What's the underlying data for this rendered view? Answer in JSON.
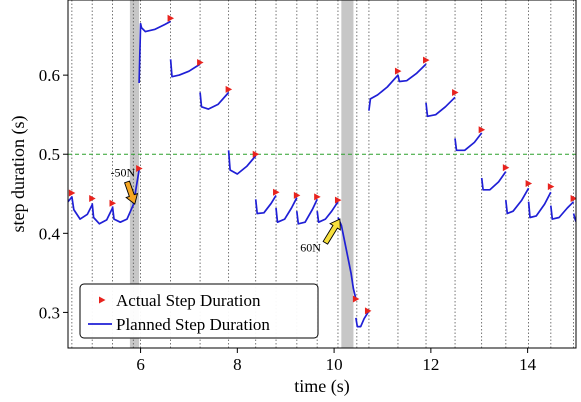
{
  "chart_data": {
    "type": "line",
    "xlabel": "time (s)",
    "ylabel": "step duration (s)",
    "xlim": [
      4.5,
      15.0
    ],
    "ylim": [
      0.255,
      0.695
    ],
    "xticks": [
      6,
      8,
      10,
      12,
      14
    ],
    "yticks": [
      0.3,
      0.4,
      0.5,
      0.6
    ],
    "xtick_labels": [
      "6",
      "8",
      "10",
      "12",
      "14"
    ],
    "ytick_labels": [
      "0.3",
      "0.4",
      "0.5",
      "0.6"
    ],
    "reference_line": {
      "y": 0.5,
      "color": "#2ca02c",
      "style": "dashed"
    },
    "push_bands": [
      {
        "x0": 5.78,
        "x1": 5.97
      },
      {
        "x0": 10.15,
        "x1": 10.4
      }
    ],
    "step_events": [
      4.58,
      5.0,
      5.42,
      5.85,
      6.0,
      6.62,
      7.23,
      7.82,
      8.38,
      8.8,
      9.23,
      9.65,
      10.08,
      10.47,
      10.72,
      11.32,
      11.9,
      12.5,
      13.05,
      13.55,
      14.02,
      14.48,
      14.95
    ],
    "annotations": [
      {
        "text": "-50N",
        "x": 5.38,
        "y": 0.472,
        "arrow_from": [
          5.72,
          0.465
        ],
        "arrow_to": [
          5.88,
          0.437
        ],
        "arrow_color": "#f5a623"
      },
      {
        "text": "60N",
        "x": 9.3,
        "y": 0.377,
        "arrow_from": [
          9.82,
          0.388
        ],
        "arrow_to": [
          10.12,
          0.418
        ],
        "arrow_color": "#f7e03c"
      }
    ],
    "legend": {
      "placement": "lower-left",
      "entries": [
        "Actual Step Duration",
        "Planned Step Duration"
      ]
    },
    "series": [
      {
        "name": "Actual Step Duration",
        "marker": "triangle-right",
        "color": "#e8231e",
        "x": [
          4.58,
          5.0,
          5.42,
          5.97,
          6.62,
          7.23,
          7.82,
          8.38,
          8.8,
          9.23,
          9.65,
          10.08,
          10.45,
          10.7,
          11.32,
          11.9,
          12.5,
          13.05,
          13.55,
          14.02,
          14.48,
          14.95
        ],
        "y": [
          0.451,
          0.444,
          0.438,
          0.482,
          0.672,
          0.616,
          0.582,
          0.5,
          0.452,
          0.448,
          0.446,
          0.442,
          0.317,
          0.302,
          0.605,
          0.619,
          0.578,
          0.531,
          0.483,
          0.463,
          0.459,
          0.444
        ]
      },
      {
        "name": "Planned Step Duration",
        "color": "#1f1fd6",
        "segments": [
          {
            "x": [
              4.5,
              4.58,
              4.62,
              4.75,
              4.9,
              5.0
            ],
            "y": [
              0.44,
              0.446,
              0.43,
              0.418,
              0.424,
              0.436
            ]
          },
          {
            "x": [
              5.0,
              5.03,
              5.15,
              5.3,
              5.42
            ],
            "y": [
              0.438,
              0.42,
              0.412,
              0.417,
              0.432
            ]
          },
          {
            "x": [
              5.42,
              5.45,
              5.58,
              5.72,
              5.85,
              5.97
            ],
            "y": [
              0.434,
              0.418,
              0.414,
              0.418,
              0.436,
              0.48
            ]
          },
          {
            "x": [
              5.97,
              6.0,
              6.02,
              6.1,
              6.3,
              6.5,
              6.62
            ],
            "y": [
              0.59,
              0.665,
              0.66,
              0.655,
              0.658,
              0.664,
              0.668
            ]
          },
          {
            "x": [
              6.62,
              6.65,
              6.8,
              7.0,
              7.23
            ],
            "y": [
              0.62,
              0.598,
              0.6,
              0.605,
              0.614
            ]
          },
          {
            "x": [
              7.23,
              7.26,
              7.4,
              7.6,
              7.82
            ],
            "y": [
              0.578,
              0.56,
              0.557,
              0.563,
              0.578
            ]
          },
          {
            "x": [
              7.82,
              7.85,
              8.0,
              8.2,
              8.38
            ],
            "y": [
              0.505,
              0.48,
              0.475,
              0.485,
              0.498
            ]
          },
          {
            "x": [
              8.38,
              8.41,
              8.55,
              8.7,
              8.8
            ],
            "y": [
              0.443,
              0.425,
              0.426,
              0.438,
              0.448
            ]
          },
          {
            "x": [
              8.8,
              8.83,
              8.98,
              9.12,
              9.23
            ],
            "y": [
              0.432,
              0.414,
              0.418,
              0.432,
              0.445
            ]
          },
          {
            "x": [
              9.23,
              9.26,
              9.4,
              9.55,
              9.65
            ],
            "y": [
              0.428,
              0.412,
              0.414,
              0.43,
              0.443
            ]
          },
          {
            "x": [
              9.65,
              9.68,
              9.82,
              9.95,
              10.08
            ],
            "y": [
              0.428,
              0.414,
              0.418,
              0.428,
              0.44
            ]
          },
          {
            "x": [
              10.08,
              10.15,
              10.25,
              10.35,
              10.4,
              10.45
            ],
            "y": [
              0.42,
              0.41,
              0.38,
              0.35,
              0.33,
              0.317
            ]
          },
          {
            "x": [
              10.45,
              10.48,
              10.55,
              10.62,
              10.7
            ],
            "y": [
              0.293,
              0.282,
              0.282,
              0.292,
              0.3
            ]
          },
          {
            "x": [
              10.72,
              10.75,
              10.9,
              11.1,
              11.32
            ],
            "y": [
              0.555,
              0.57,
              0.575,
              0.585,
              0.6
            ]
          },
          {
            "x": [
              11.32,
              11.35,
              11.5,
              11.7,
              11.9
            ],
            "y": [
              0.6,
              0.592,
              0.593,
              0.602,
              0.614
            ]
          },
          {
            "x": [
              11.9,
              11.93,
              12.1,
              12.3,
              12.5
            ],
            "y": [
              0.565,
              0.548,
              0.55,
              0.56,
              0.572
            ]
          },
          {
            "x": [
              12.5,
              12.53,
              12.7,
              12.9,
              13.05
            ],
            "y": [
              0.52,
              0.505,
              0.505,
              0.515,
              0.527
            ]
          },
          {
            "x": [
              13.05,
              13.08,
              13.22,
              13.4,
              13.55
            ],
            "y": [
              0.47,
              0.455,
              0.455,
              0.465,
              0.478
            ]
          },
          {
            "x": [
              13.55,
              13.58,
              13.7,
              13.88,
              14.02
            ],
            "y": [
              0.442,
              0.425,
              0.428,
              0.442,
              0.457
            ]
          },
          {
            "x": [
              14.02,
              14.05,
              14.18,
              14.35,
              14.48
            ],
            "y": [
              0.44,
              0.42,
              0.422,
              0.437,
              0.452
            ]
          },
          {
            "x": [
              14.48,
              14.51,
              14.65,
              14.82,
              14.95
            ],
            "y": [
              0.435,
              0.418,
              0.42,
              0.432,
              0.44
            ]
          },
          {
            "x": [
              14.95,
              14.98,
              15.0
            ],
            "y": [
              0.425,
              0.418,
              0.415
            ]
          }
        ]
      }
    ]
  }
}
